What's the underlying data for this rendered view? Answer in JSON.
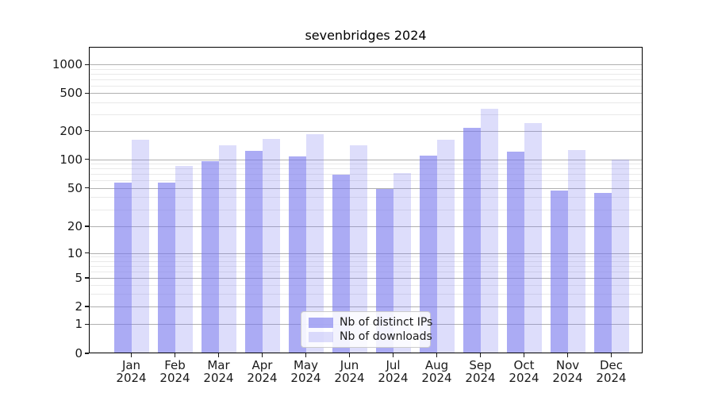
{
  "figure": {
    "title": "sevenbridges 2024"
  },
  "legend": {
    "items": [
      {
        "label": "Nb of distinct IPs",
        "series": "ips"
      },
      {
        "label": "Nb of downloads",
        "series": "downloads"
      }
    ]
  },
  "colors": {
    "bar_base": "#7777ee",
    "ips_fill": "rgba(119,119,238,0.62)",
    "downloads_fill": "rgba(119,119,238,0.25)",
    "major_grid": "#b0b0b0",
    "minor_grid": "#e9e9e9",
    "spine": "#000000",
    "text": "#1a1a1a"
  },
  "chart_data": {
    "type": "bar",
    "title": "sevenbridges 2024",
    "categories": [
      "Jan 2024",
      "Feb 2024",
      "Mar 2024",
      "Apr 2024",
      "May 2024",
      "Jun 2024",
      "Jul 2024",
      "Aug 2024",
      "Sep 2024",
      "Oct 2024",
      "Nov 2024",
      "Dec 2024"
    ],
    "series": [
      {
        "name": "Nb of distinct IPs",
        "values": [
          57,
          57,
          96,
          123,
          108,
          69,
          49,
          110,
          216,
          121,
          47,
          44
        ]
      },
      {
        "name": "Nb of downloads",
        "values": [
          160,
          86,
          140,
          164,
          183,
          140,
          71,
          160,
          345,
          240,
          126,
          100
        ]
      }
    ],
    "xlabel": "",
    "ylabel": "",
    "y_axis": {
      "scale": "symlog",
      "ticks": [
        0,
        1,
        2,
        5,
        10,
        20,
        50,
        100,
        200,
        500,
        1000
      ],
      "minor_gridlines": [
        3,
        4,
        6,
        7,
        8,
        9,
        30,
        40,
        60,
        70,
        80,
        90,
        300,
        400,
        600,
        700,
        800,
        900
      ],
      "ylim": [
        0,
        1500
      ]
    },
    "grid": "both",
    "legend_position": "lower center"
  }
}
